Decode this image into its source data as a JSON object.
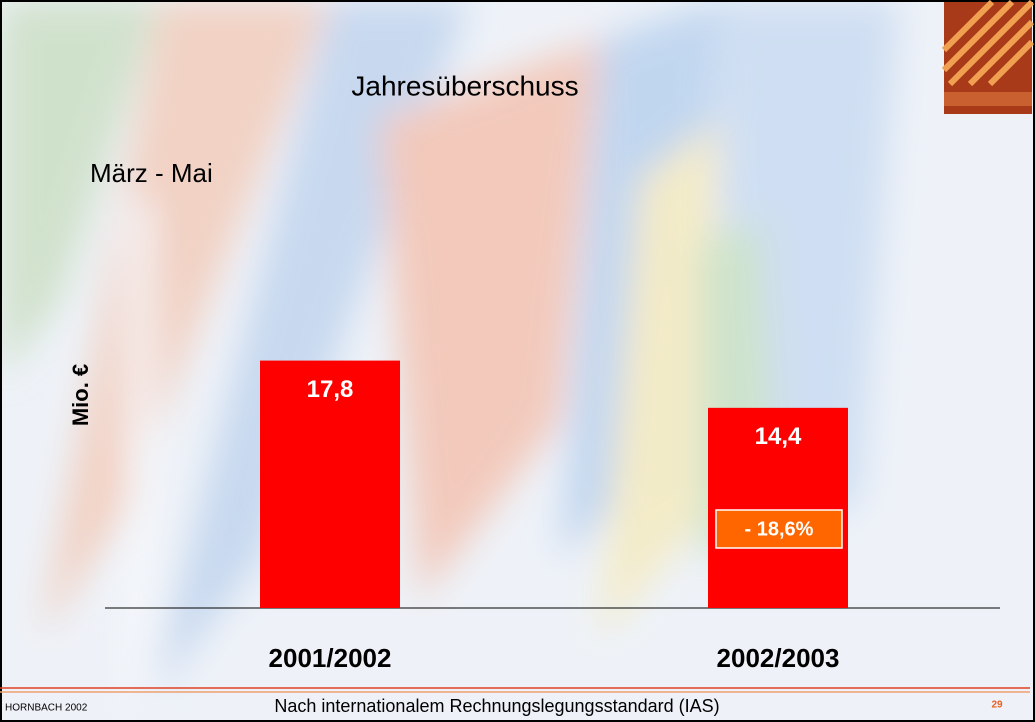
{
  "chart_data": {
    "type": "bar",
    "title": "Jahresüberschuss",
    "subtitle": "März - Mai",
    "y_label": "Mio. €",
    "categories": [
      "2001/2002",
      "2002/2003"
    ],
    "values": [
      17.8,
      14.4
    ],
    "value_labels": [
      "17,8",
      "14,4"
    ],
    "annotation": "- 18,6%",
    "color": "#ff0000",
    "ylim": [
      0,
      20
    ]
  },
  "footer": {
    "left": "HORNBACH 2002",
    "center": "Nach internationalem Rechnungslegungsstandard (IAS)",
    "page": "29"
  }
}
